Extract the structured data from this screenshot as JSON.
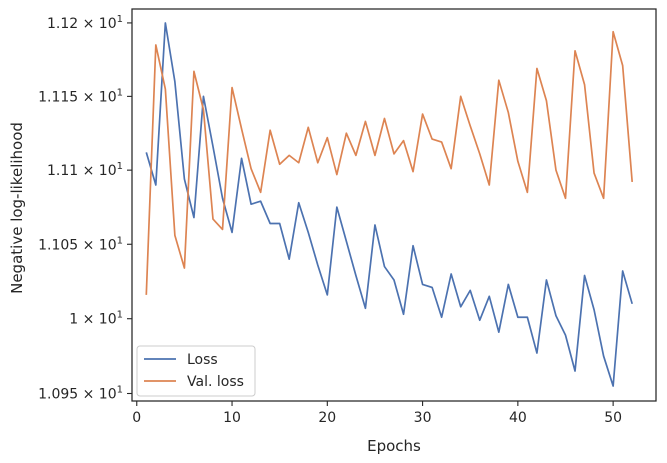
{
  "chart_data": {
    "type": "line",
    "xlabel": "Epochs",
    "ylabel": "Negative log-likelihood",
    "xlim": [
      -0.5,
      54.5
    ],
    "ylim": [
      10.945,
      11.2095
    ],
    "x_ticks": [
      0,
      10,
      20,
      30,
      40,
      50
    ],
    "y_ticks": [
      {
        "value": 10.95,
        "mantissa": "1.095",
        "exp": "1"
      },
      {
        "value": 11.0,
        "mantissa": "1",
        "exp": "1"
      },
      {
        "value": 11.05,
        "mantissa": "1.105",
        "exp": "1"
      },
      {
        "value": 11.1,
        "mantissa": "1.11",
        "exp": "1"
      },
      {
        "value": 11.15,
        "mantissa": "1.115",
        "exp": "1"
      },
      {
        "value": 11.2,
        "mantissa": "1.12",
        "exp": "1"
      }
    ],
    "y_scale": "log",
    "grid": false,
    "legend_position": "lower-left",
    "series": [
      {
        "name": "Loss",
        "color": "#4c72b0",
        "x": [
          1,
          2,
          3,
          4,
          5,
          6,
          7,
          8,
          9,
          10,
          11,
          12,
          13,
          14,
          15,
          16,
          17,
          18,
          19,
          20,
          21,
          22,
          23,
          24,
          25,
          26,
          27,
          28,
          29,
          30,
          31,
          32,
          33,
          34,
          35,
          36,
          37,
          38,
          39,
          40,
          41,
          42,
          43,
          44,
          45,
          46,
          47,
          48,
          49,
          50,
          51,
          52
        ],
        "values": [
          11.112,
          11.09,
          11.2,
          11.16,
          11.094,
          11.068,
          11.15,
          11.116,
          11.081,
          11.058,
          11.108,
          11.077,
          11.079,
          11.064,
          11.064,
          11.04,
          11.078,
          11.058,
          11.036,
          11.016,
          11.075,
          11.052,
          11.029,
          11.007,
          11.063,
          11.035,
          11.026,
          11.003,
          11.049,
          11.023,
          11.021,
          11.001,
          11.03,
          11.008,
          11.019,
          10.999,
          11.015,
          10.991,
          11.023,
          11.001,
          11.001,
          10.977,
          11.026,
          11.002,
          10.989,
          10.965,
          11.029,
          11.006,
          10.975,
          10.955,
          11.032,
          11.01
        ]
      },
      {
        "name": "Val. loss",
        "color": "#dd8452",
        "x": [
          1,
          2,
          3,
          4,
          5,
          6,
          7,
          8,
          9,
          10,
          11,
          12,
          13,
          14,
          15,
          16,
          17,
          18,
          19,
          20,
          21,
          22,
          23,
          24,
          25,
          26,
          27,
          28,
          29,
          30,
          31,
          32,
          33,
          34,
          35,
          36,
          37,
          38,
          39,
          40,
          41,
          42,
          43,
          44,
          45,
          46,
          47,
          48,
          49,
          50,
          51,
          52
        ],
        "values": [
          11.016,
          11.185,
          11.155,
          11.056,
          11.034,
          11.167,
          11.141,
          11.067,
          11.06,
          11.156,
          11.128,
          11.101,
          11.085,
          11.127,
          11.104,
          11.11,
          11.105,
          11.129,
          11.105,
          11.122,
          11.097,
          11.125,
          11.11,
          11.133,
          11.11,
          11.135,
          11.111,
          11.12,
          11.099,
          11.138,
          11.121,
          11.119,
          11.101,
          11.15,
          11.13,
          11.111,
          11.09,
          11.161,
          11.139,
          11.106,
          11.085,
          11.169,
          11.147,
          11.1,
          11.081,
          11.181,
          11.158,
          11.098,
          11.081,
          11.194,
          11.171,
          11.092
        ]
      }
    ]
  }
}
